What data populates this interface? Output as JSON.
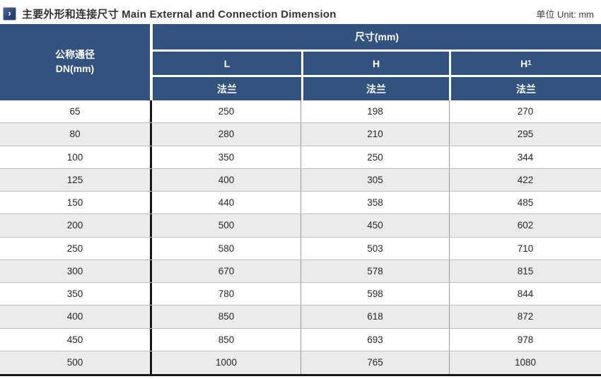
{
  "page": {
    "icon_glyph": "›",
    "title": "主要外形和连接尺寸 Main External and Connection Dimension",
    "unit": "单位 Unit: mm"
  },
  "colors": {
    "header_blue": "#33527D",
    "alt_row_gray": "#EBEBEB",
    "divider_black": "#161616"
  },
  "table": {
    "dn_header": {
      "line1": "公称通径",
      "line2": "DN(mm)"
    },
    "size_group_label": "尺寸(mm)",
    "columns": [
      {
        "label": "L",
        "subscript": "",
        "type_label": "法兰"
      },
      {
        "label": "H",
        "subscript": "",
        "type_label": "法兰"
      },
      {
        "label": "H",
        "subscript": "1",
        "type_label": "法兰"
      }
    ],
    "rows": [
      {
        "dn": "65",
        "l": "250",
        "h": "198",
        "h1": "270"
      },
      {
        "dn": "80",
        "l": "280",
        "h": "210",
        "h1": "295"
      },
      {
        "dn": "100",
        "l": "350",
        "h": "250",
        "h1": "344"
      },
      {
        "dn": "125",
        "l": "400",
        "h": "305",
        "h1": "422"
      },
      {
        "dn": "150",
        "l": "440",
        "h": "358",
        "h1": "485"
      },
      {
        "dn": "200",
        "l": "500",
        "h": "450",
        "h1": "602"
      },
      {
        "dn": "250",
        "l": "580",
        "h": "503",
        "h1": "710"
      },
      {
        "dn": "300",
        "l": "670",
        "h": "578",
        "h1": "815"
      },
      {
        "dn": "350",
        "l": "780",
        "h": "598",
        "h1": "844"
      },
      {
        "dn": "400",
        "l": "850",
        "h": "618",
        "h1": "872"
      },
      {
        "dn": "450",
        "l": "850",
        "h": "693",
        "h1": "978"
      },
      {
        "dn": "500",
        "l": "1000",
        "h": "765",
        "h1": "1080"
      }
    ]
  }
}
